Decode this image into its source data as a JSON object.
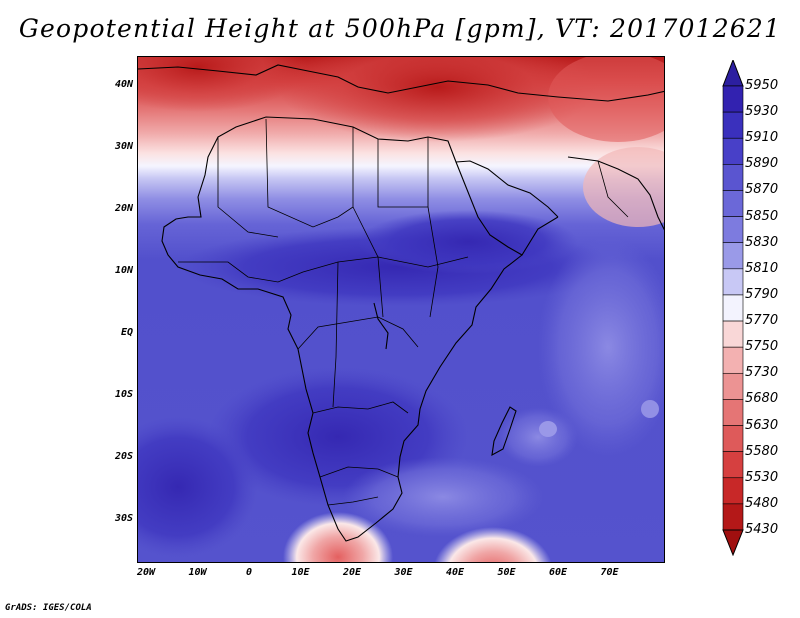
{
  "title": "Geopotential Height at 500hPa [gpm], VT: 2017012621",
  "credit": "GrADS: IGES/COLA",
  "axes": {
    "x_ticks": [
      "20W",
      "10W",
      "0",
      "10E",
      "20E",
      "30E",
      "40E",
      "50E",
      "60E",
      "70E"
    ],
    "y_ticks": [
      "40N",
      "30N",
      "20N",
      "10N",
      "EQ",
      "10S",
      "20S",
      "30S"
    ]
  },
  "colorbar": {
    "levels": [
      "5950",
      "5930",
      "5910",
      "5890",
      "5870",
      "5850",
      "5830",
      "5810",
      "5790",
      "5770",
      "5750",
      "5730",
      "5680",
      "5630",
      "5580",
      "5530",
      "5480",
      "5430"
    ],
    "colors": [
      "#2c1fa0",
      "#3222b0",
      "#3a30bd",
      "#4840c8",
      "#5a55d0",
      "#6b68d8",
      "#7d7bdf",
      "#9a9ae8",
      "#c8c8f5",
      "#f3f3fe",
      "#f9d7d7",
      "#f3b1b1",
      "#ec9393",
      "#e57575",
      "#de5a5a",
      "#d64040",
      "#c82828",
      "#b41818",
      "#a00f0f"
    ]
  },
  "map": {
    "region": "Africa",
    "lon_range": [
      -23,
      80
    ],
    "lat_range": [
      -37,
      45
    ],
    "colors": {
      "background_blue": "#5654cd",
      "deep_blue": "#3930b9",
      "light_blue": "#7b79dc",
      "pale": "#f3f3fe",
      "red_mid": "#e36e6e",
      "red_dark": "#c62626"
    }
  }
}
